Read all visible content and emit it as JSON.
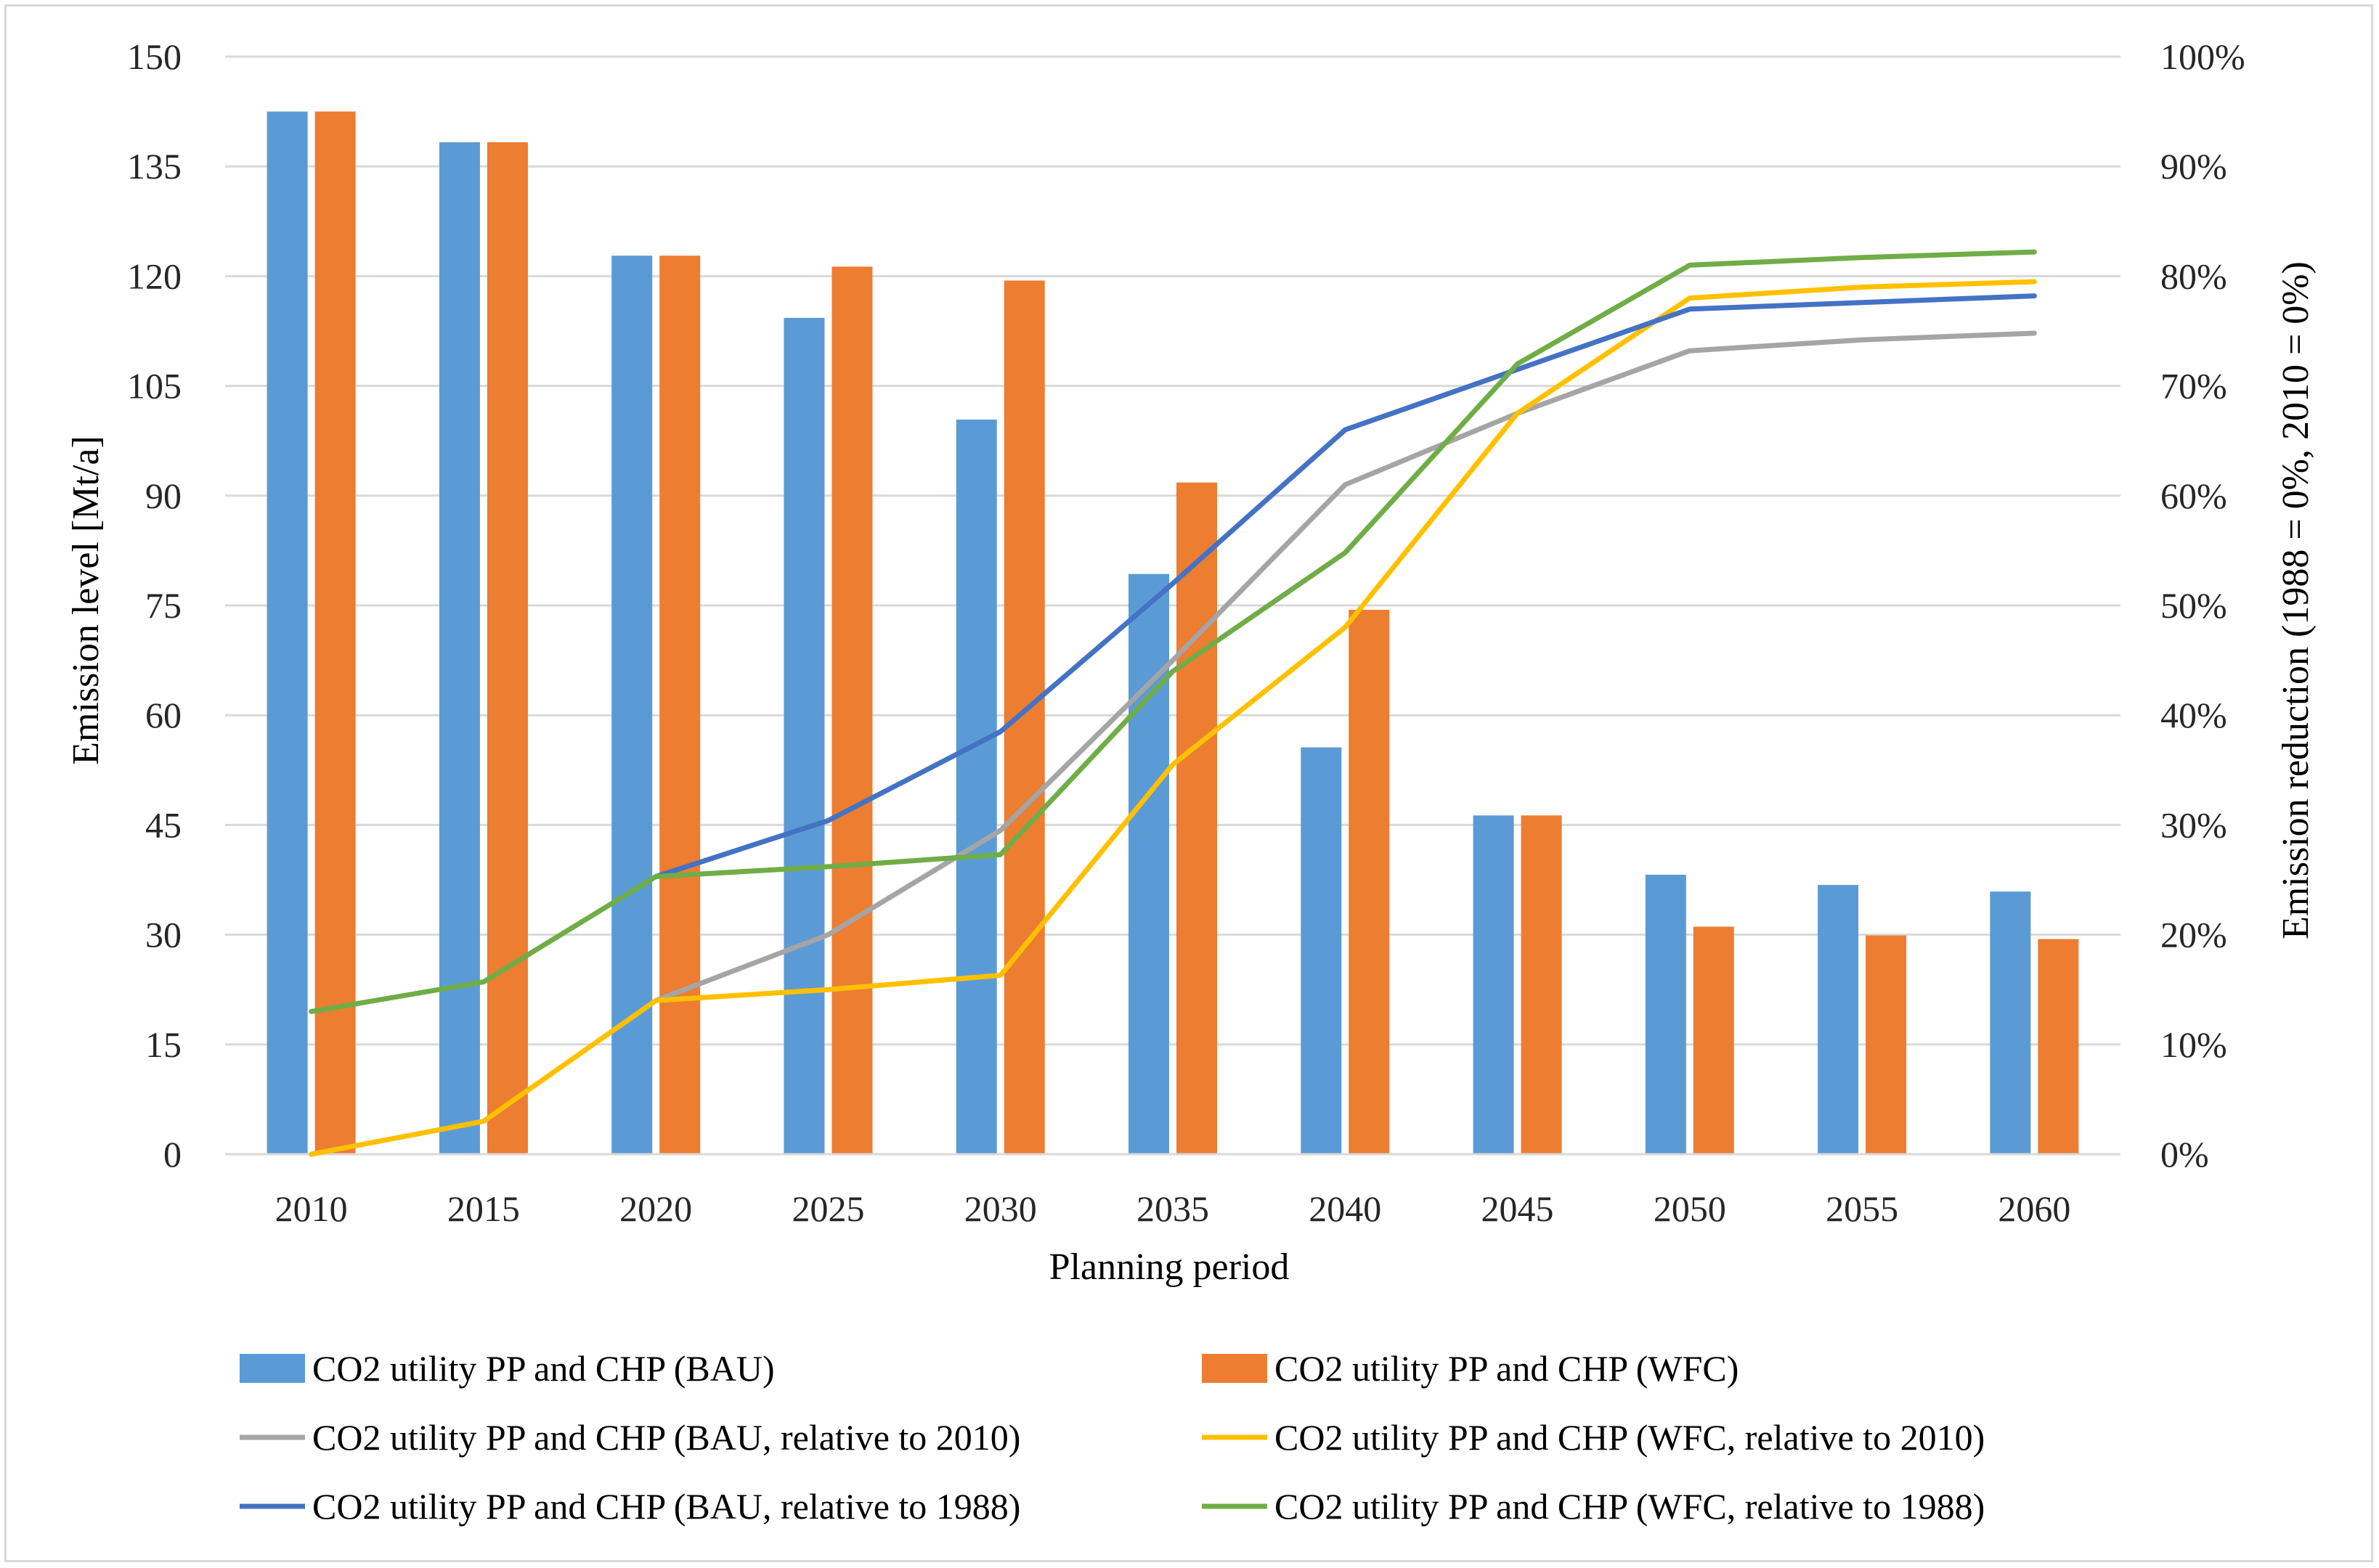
{
  "chart_data": {
    "type": "bar",
    "categories": [
      "2010",
      "2015",
      "2020",
      "2025",
      "2030",
      "2035",
      "2040",
      "2045",
      "2050",
      "2055",
      "2060"
    ],
    "xlabel": "Planning period",
    "ylabel": "Emission level [Mt/a]",
    "y2label": "Emission reduction  (1988 = 0%, 2010 = 0%)",
    "ylim": [
      0,
      150
    ],
    "y2lim": [
      0,
      100
    ],
    "yticks": [
      "0",
      "15",
      "30",
      "45",
      "60",
      "75",
      "90",
      "105",
      "120",
      "135",
      "150"
    ],
    "y2ticks": [
      "0%",
      "10%",
      "20%",
      "30%",
      "40%",
      "50%",
      "60%",
      "70%",
      "80%",
      "90%",
      "100%"
    ],
    "grid": true,
    "legend_position": "bottom",
    "series": [
      {
        "name": "CO2 utility PP and CHP (BAU)",
        "kind": "bar",
        "axis": "left",
        "color": "#5B9BD5",
        "values": [
          142.5,
          138.3,
          122.8,
          114.3,
          100.4,
          79.3,
          55.6,
          46.3,
          38.2,
          36.8,
          35.9
        ]
      },
      {
        "name": "CO2 utility PP and CHP (WFC)",
        "kind": "bar",
        "axis": "left",
        "color": "#ED7D31",
        "values": [
          142.5,
          138.3,
          122.8,
          121.3,
          119.4,
          91.8,
          74.4,
          46.3,
          31.1,
          29.9,
          29.4
        ]
      },
      {
        "name": "CO2 utility PP and CHP (BAU, relative to 2010)",
        "kind": "line",
        "axis": "right",
        "color": "#A5A5A5",
        "values": [
          null,
          null,
          14.0,
          20.0,
          29.5,
          45.0,
          61.0,
          67.5,
          73.2,
          74.2,
          74.8
        ]
      },
      {
        "name": "CO2 utility PP and CHP (WFC, relative to 2010)",
        "kind": "line",
        "axis": "right",
        "color": "#FFC000",
        "values": [
          0,
          3.0,
          14.0,
          15.0,
          16.3,
          35.5,
          48.0,
          67.5,
          78.0,
          79.0,
          79.5
        ]
      },
      {
        "name": "CO2 utility PP and CHP (BAU, relative to 1988)",
        "kind": "line",
        "axis": "right",
        "color": "#4472C4",
        "values": [
          null,
          null,
          25.3,
          30.4,
          38.5,
          52.0,
          66.0,
          71.5,
          77.0,
          77.6,
          78.2
        ]
      },
      {
        "name": "CO2 utility PP and CHP (WFC, relative to 1988)",
        "kind": "line",
        "axis": "right",
        "color": "#70AD47",
        "values": [
          13.0,
          15.7,
          25.3,
          26.2,
          27.3,
          44.0,
          54.8,
          72.0,
          81.0,
          81.7,
          82.2
        ]
      }
    ]
  }
}
